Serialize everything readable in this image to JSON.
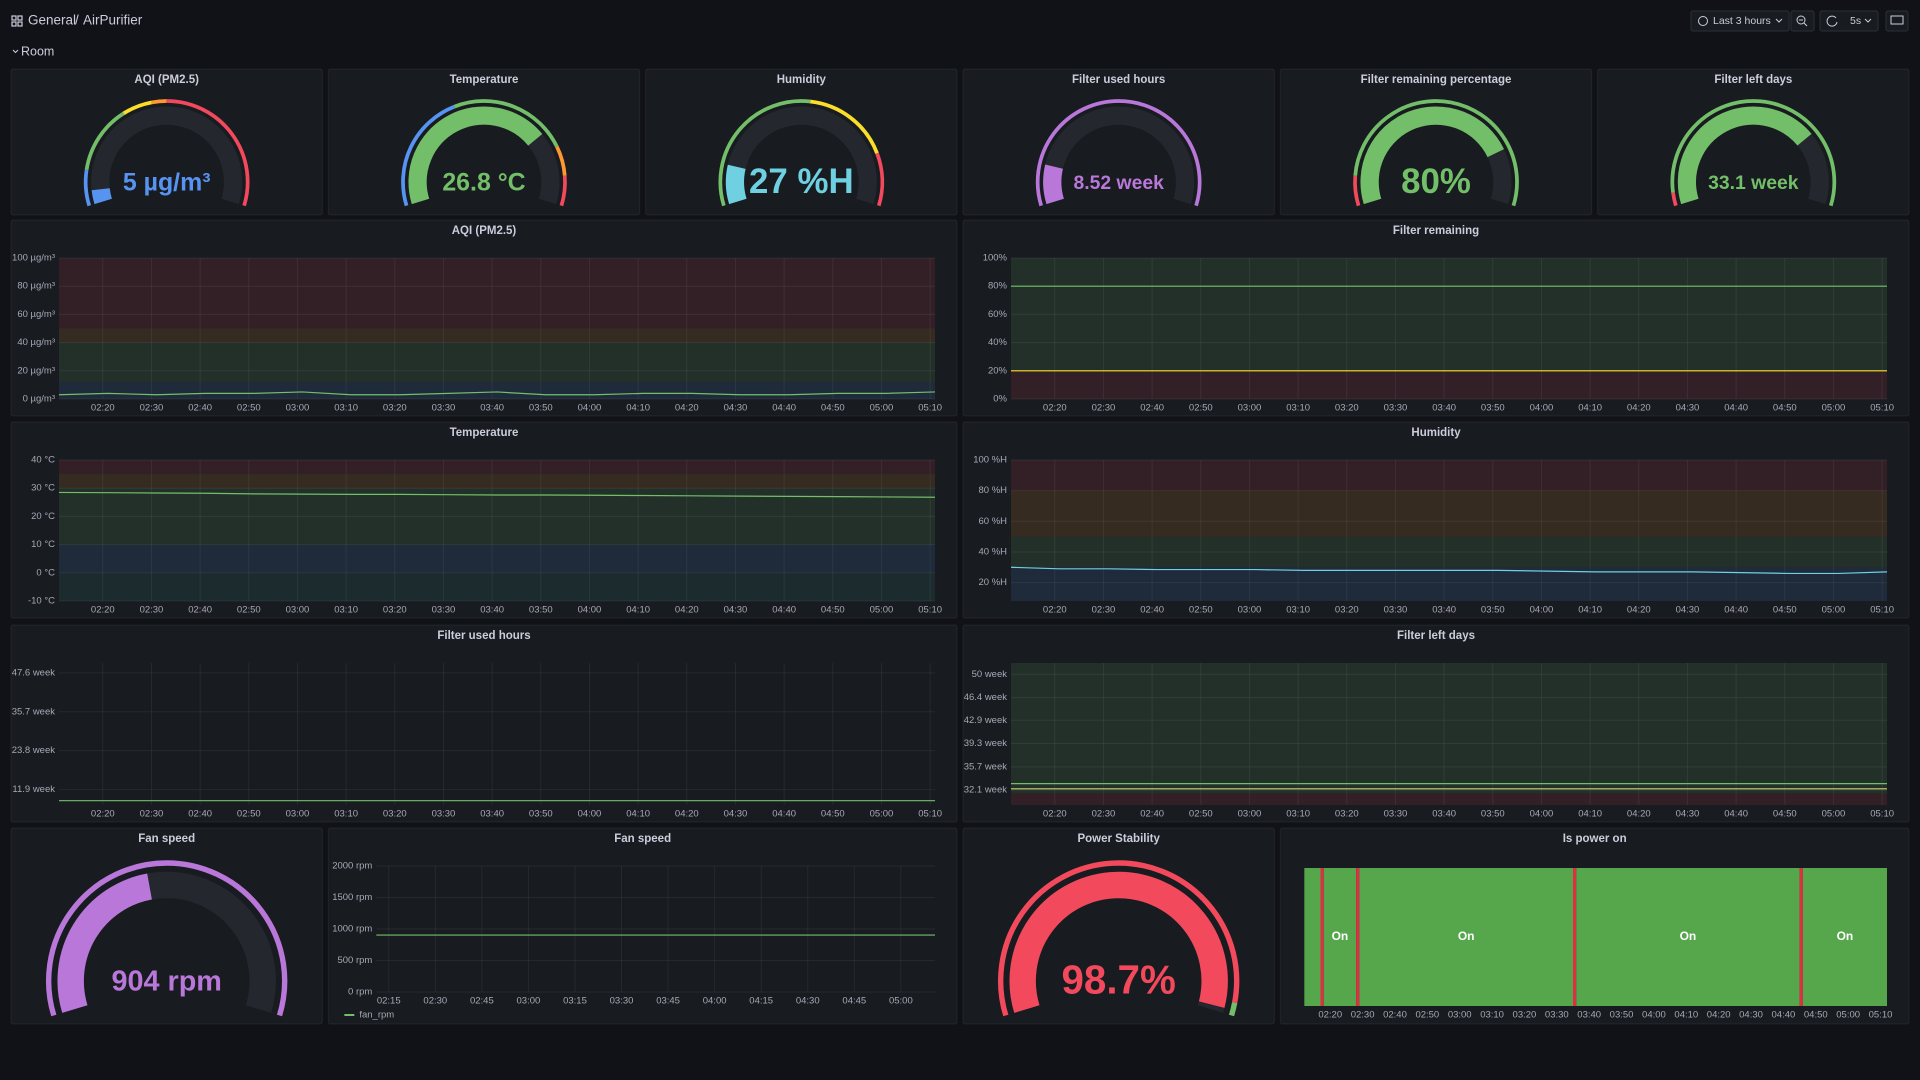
{
  "header": {
    "breadcrumb": [
      "General",
      "AirPurifier"
    ],
    "separator": "/",
    "time_range": "Last 3 hours",
    "refresh": "5s"
  },
  "row": {
    "title": "Room"
  },
  "chart_data": [
    {
      "type": "gauge",
      "title": "AQI (PM2.5)",
      "values": [
        5
      ],
      "value_labels": [
        "5 µg/m³"
      ],
      "ylim": [
        0,
        100
      ],
      "color": "#5794f2",
      "base_color": "#5794f2",
      "thresholds": [
        {
          "value": 12,
          "color": "#73bf69"
        },
        {
          "value": 35,
          "color": "#fade2a"
        },
        {
          "value": 45,
          "color": "#ff9830"
        },
        {
          "value": 50,
          "color": "#f2495c"
        }
      ]
    },
    {
      "type": "gauge",
      "title": "Temperature",
      "values": [
        26.8
      ],
      "value_labels": [
        "26.8 °C"
      ],
      "ylim": [
        -10,
        40
      ],
      "color": "#73bf69",
      "base_color": "#5794f2",
      "thresholds": [
        {
          "value": 10,
          "color": "#73bf69"
        },
        {
          "value": 30,
          "color": "#ff9830"
        },
        {
          "value": 35,
          "color": "#f2495c"
        }
      ]
    },
    {
      "type": "gauge",
      "title": "Humidity",
      "values": [
        27
      ],
      "value_labels": [
        "27 %H"
      ],
      "ylim": [
        15,
        100
      ],
      "color": "#6ed0e0",
      "base_color": "#73bf69",
      "thresholds": [
        {
          "value": 60,
          "color": "#fade2a"
        },
        {
          "value": 85,
          "color": "#f2495c"
        }
      ]
    },
    {
      "type": "gauge",
      "title": "Filter used hours",
      "values": [
        8.52
      ],
      "value_labels": [
        "8.52 week"
      ],
      "ylim": [
        0,
        60
      ],
      "color": "#b877d9",
      "base_color": "#b877d9"
    },
    {
      "type": "gauge",
      "title": "Filter remaining percentage",
      "values": [
        80
      ],
      "value_labels": [
        "80%"
      ],
      "ylim": [
        0,
        100
      ],
      "color": "#73bf69",
      "base_color": "#f2495c",
      "thresholds": [
        {
          "value": 10,
          "color": "#73bf69"
        }
      ]
    },
    {
      "type": "gauge",
      "title": "Filter left days",
      "values": [
        33.1
      ],
      "value_labels": [
        "33.1 week"
      ],
      "ylim": [
        0,
        45
      ],
      "color": "#73bf69",
      "base_color": "#f2495c",
      "thresholds": [
        {
          "value": 2,
          "color": "#73bf69"
        }
      ]
    },
    {
      "type": "line",
      "title": "AQI (PM2.5)",
      "x": [
        "02:11",
        "02:21",
        "02:31",
        "02:41",
        "02:51",
        "03:01",
        "03:11",
        "03:21",
        "03:31",
        "03:41",
        "03:51",
        "04:01",
        "04:11",
        "04:21",
        "04:31",
        "04:41",
        "04:51",
        "05:01",
        "05:11"
      ],
      "xlim": [
        "02:11",
        "05:11"
      ],
      "xticks": [
        "02:20",
        "02:30",
        "02:40",
        "02:50",
        "03:00",
        "03:10",
        "03:20",
        "03:30",
        "03:40",
        "03:50",
        "04:00",
        "04:10",
        "04:20",
        "04:30",
        "04:40",
        "04:50",
        "05:00",
        "05:10"
      ],
      "ylim": [
        0,
        100
      ],
      "yticks": [
        {
          "value": 0,
          "label": "0 µg/m³"
        },
        {
          "value": 20,
          "label": "20 µg/m³"
        },
        {
          "value": 40,
          "label": "40 µg/m³"
        },
        {
          "value": 60,
          "label": "60 µg/m³"
        },
        {
          "value": 80,
          "label": "80 µg/m³"
        },
        {
          "value": 100,
          "label": "100 µg/m³"
        }
      ],
      "grid": true,
      "bands": [
        {
          "from": 0,
          "to": 12,
          "color": "#5794f2"
        },
        {
          "from": 12,
          "to": 40,
          "color": "#73bf69"
        },
        {
          "from": 40,
          "to": 50,
          "color": "#ff9830"
        },
        {
          "from": 50,
          "to": 100,
          "color": "#f2495c"
        }
      ],
      "series": [
        {
          "color": "#73bf69",
          "values": [
            3,
            4,
            3,
            4,
            4,
            5,
            3,
            3,
            4,
            5,
            3,
            3,
            4,
            4,
            3,
            3,
            4,
            4,
            5
          ]
        }
      ]
    },
    {
      "type": "line",
      "title": "Filter remaining",
      "x": [
        "02:11",
        "02:21",
        "02:31",
        "02:41",
        "02:51",
        "03:01",
        "03:11",
        "03:21",
        "03:31",
        "03:41",
        "03:51",
        "04:01",
        "04:11",
        "04:21",
        "04:31",
        "04:41",
        "04:51",
        "05:01",
        "05:11"
      ],
      "xlim": [
        "02:11",
        "05:11"
      ],
      "xticks": [
        "02:20",
        "02:30",
        "02:40",
        "02:50",
        "03:00",
        "03:10",
        "03:20",
        "03:30",
        "03:40",
        "03:50",
        "04:00",
        "04:10",
        "04:20",
        "04:30",
        "04:40",
        "04:50",
        "05:00",
        "05:10"
      ],
      "ylim": [
        0,
        100
      ],
      "yticks": [
        {
          "value": 0,
          "label": "0%"
        },
        {
          "value": 20,
          "label": "20%"
        },
        {
          "value": 40,
          "label": "40%"
        },
        {
          "value": 60,
          "label": "60%"
        },
        {
          "value": 80,
          "label": "80%"
        },
        {
          "value": 100,
          "label": "100%"
        }
      ],
      "grid": true,
      "bands": [
        {
          "from": 0,
          "to": 20,
          "color": "#f2495c"
        },
        {
          "from": 20,
          "to": 100,
          "color": "#73bf69"
        }
      ],
      "threshold_lines": [
        {
          "value": 20,
          "color": "#fade2a"
        }
      ],
      "series": [
        {
          "color": "#73bf69",
          "values": [
            80,
            80,
            80,
            80,
            80,
            80,
            80,
            80,
            80,
            80,
            80,
            80,
            80,
            80,
            80,
            80,
            80,
            80,
            80
          ]
        }
      ]
    },
    {
      "type": "line",
      "title": "Temperature",
      "x": [
        "02:11",
        "02:21",
        "02:31",
        "02:41",
        "02:51",
        "03:01",
        "03:11",
        "03:21",
        "03:31",
        "03:41",
        "03:51",
        "04:01",
        "04:11",
        "04:21",
        "04:31",
        "04:41",
        "04:51",
        "05:01",
        "05:11"
      ],
      "xlim": [
        "02:11",
        "05:11"
      ],
      "xticks": [
        "02:20",
        "02:30",
        "02:40",
        "02:50",
        "03:00",
        "03:10",
        "03:20",
        "03:30",
        "03:40",
        "03:50",
        "04:00",
        "04:10",
        "04:20",
        "04:30",
        "04:40",
        "04:50",
        "05:00",
        "05:10"
      ],
      "ylim": [
        -10,
        40
      ],
      "yticks": [
        {
          "value": -10,
          "label": "-10 °C"
        },
        {
          "value": 0,
          "label": "0 °C"
        },
        {
          "value": 10,
          "label": "10 °C"
        },
        {
          "value": 20,
          "label": "20 °C"
        },
        {
          "value": 30,
          "label": "30 °C"
        },
        {
          "value": 40,
          "label": "40 °C"
        }
      ],
      "grid": true,
      "bands": [
        {
          "from": -10,
          "to": 0,
          "color": "#3ba594"
        },
        {
          "from": 0,
          "to": 10,
          "color": "#5794f2"
        },
        {
          "from": 10,
          "to": 30,
          "color": "#73bf69"
        },
        {
          "from": 30,
          "to": 35,
          "color": "#ff9830"
        },
        {
          "from": 35,
          "to": 40,
          "color": "#f2495c"
        }
      ],
      "series": [
        {
          "color": "#73bf69",
          "values": [
            28.5,
            28.4,
            28.3,
            28.2,
            28.0,
            27.9,
            27.8,
            27.8,
            27.7,
            27.6,
            27.6,
            27.5,
            27.4,
            27.3,
            27.2,
            27.1,
            27.0,
            26.9,
            26.8
          ]
        }
      ]
    },
    {
      "type": "line",
      "title": "Humidity",
      "x": [
        "02:11",
        "02:21",
        "02:31",
        "02:41",
        "02:51",
        "03:01",
        "03:11",
        "03:21",
        "03:31",
        "03:41",
        "03:51",
        "04:01",
        "04:11",
        "04:21",
        "04:31",
        "04:41",
        "04:51",
        "05:01",
        "05:11"
      ],
      "xlim": [
        "02:11",
        "05:11"
      ],
      "xticks": [
        "02:20",
        "02:30",
        "02:40",
        "02:50",
        "03:00",
        "03:10",
        "03:20",
        "03:30",
        "03:40",
        "03:50",
        "04:00",
        "04:10",
        "04:20",
        "04:30",
        "04:40",
        "04:50",
        "05:00",
        "05:10"
      ],
      "ylim": [
        8,
        100
      ],
      "yticks": [
        {
          "value": 20,
          "label": "20 %H"
        },
        {
          "value": 40,
          "label": "40 %H"
        },
        {
          "value": 60,
          "label": "60 %H"
        },
        {
          "value": 80,
          "label": "80 %H"
        },
        {
          "value": 100,
          "label": "100 %H"
        }
      ],
      "grid": true,
      "bands": [
        {
          "from": 8,
          "to": 30,
          "color": "#5794f2"
        },
        {
          "from": 30,
          "to": 50,
          "color": "#73bf69"
        },
        {
          "from": 50,
          "to": 80,
          "color": "#ff9830"
        },
        {
          "from": 80,
          "to": 100,
          "color": "#f2495c"
        }
      ],
      "series": [
        {
          "color": "#6ed0e0",
          "values": [
            30,
            29,
            29,
            28.5,
            28.5,
            28.5,
            28,
            28,
            28,
            28,
            28,
            27.5,
            27,
            27,
            27,
            26.5,
            26,
            26,
            27
          ]
        }
      ]
    },
    {
      "type": "line",
      "title": "Filter used hours",
      "x": [
        "02:11",
        "02:21",
        "02:31",
        "02:41",
        "02:51",
        "03:01",
        "03:11",
        "03:21",
        "03:31",
        "03:41",
        "03:51",
        "04:01",
        "04:11",
        "04:21",
        "04:31",
        "04:41",
        "04:51",
        "05:01",
        "05:11"
      ],
      "xlim": [
        "02:11",
        "05:11"
      ],
      "xticks": [
        "02:20",
        "02:30",
        "02:40",
        "02:50",
        "03:00",
        "03:10",
        "03:20",
        "03:30",
        "03:40",
        "03:50",
        "04:00",
        "04:10",
        "04:20",
        "04:30",
        "04:40",
        "04:50",
        "05:00",
        "05:10"
      ],
      "ylim": [
        7.2,
        50.6
      ],
      "yticks": [
        {
          "value": 11.9,
          "label": "11.9 week"
        },
        {
          "value": 23.8,
          "label": "23.8 week"
        },
        {
          "value": 35.7,
          "label": "35.7 week"
        },
        {
          "value": 47.6,
          "label": "47.6 week"
        }
      ],
      "grid": true,
      "series": [
        {
          "color": "#73bf69",
          "values": [
            8.52,
            8.52,
            8.52,
            8.52,
            8.52,
            8.52,
            8.52,
            8.52,
            8.52,
            8.52,
            8.52,
            8.52,
            8.52,
            8.52,
            8.52,
            8.52,
            8.52,
            8.52,
            8.52
          ]
        }
      ]
    },
    {
      "type": "line",
      "title": "Filter left days",
      "x": [
        "02:11",
        "02:21",
        "02:31",
        "02:41",
        "02:51",
        "03:01",
        "03:11",
        "03:21",
        "03:31",
        "03:41",
        "03:51",
        "04:01",
        "04:11",
        "04:21",
        "04:31",
        "04:41",
        "04:51",
        "05:01",
        "05:11"
      ],
      "xlim": [
        "02:11",
        "05:11"
      ],
      "xticks": [
        "02:20",
        "02:30",
        "02:40",
        "02:50",
        "03:00",
        "03:10",
        "03:20",
        "03:30",
        "03:40",
        "03:50",
        "04:00",
        "04:10",
        "04:20",
        "04:30",
        "04:40",
        "04:50",
        "05:00",
        "05:10"
      ],
      "ylim": [
        29.8,
        51.75
      ],
      "yticks": [
        {
          "value": 32.1,
          "label": "32.1 week"
        },
        {
          "value": 35.7,
          "label": "35.7 week"
        },
        {
          "value": 39.3,
          "label": "39.3 week"
        },
        {
          "value": 42.9,
          "label": "42.9 week"
        },
        {
          "value": 46.4,
          "label": "46.4 week"
        },
        {
          "value": 50,
          "label": "50 week"
        }
      ],
      "grid": true,
      "bands": [
        {
          "from": 29.8,
          "to": 31.6,
          "color": "#f2495c"
        },
        {
          "from": 31.6,
          "to": 51.75,
          "color": "#73bf69"
        }
      ],
      "threshold_lines": [
        {
          "value": 32.3,
          "color": "#c8d46a"
        }
      ],
      "series": [
        {
          "color": "#73bf69",
          "values": [
            33.1,
            33.1,
            33.1,
            33.1,
            33.1,
            33.1,
            33.1,
            33.1,
            33.1,
            33.1,
            33.1,
            33.1,
            33.1,
            33.1,
            33.1,
            33.1,
            33.1,
            33.1,
            33.1
          ]
        }
      ]
    },
    {
      "type": "gauge",
      "title": "Fan speed",
      "values": [
        904
      ],
      "value_labels": [
        "904 rpm"
      ],
      "ylim": [
        0,
        2000
      ],
      "color": "#b877d9",
      "base_color": "#b877d9"
    },
    {
      "type": "line",
      "title": "Fan speed",
      "x": [
        "02:11",
        "02:21",
        "02:31",
        "02:41",
        "02:51",
        "03:01",
        "03:11",
        "03:21",
        "03:31",
        "03:41",
        "03:51",
        "04:01",
        "04:11",
        "04:21",
        "04:31",
        "04:41",
        "04:51",
        "05:01",
        "05:11"
      ],
      "xlim": [
        "02:11",
        "05:11"
      ],
      "xticks": [
        "02:15",
        "02:30",
        "02:45",
        "03:00",
        "03:15",
        "03:30",
        "03:45",
        "04:00",
        "04:15",
        "04:30",
        "04:45",
        "05:00"
      ],
      "ylim": [
        0,
        2000
      ],
      "yticks": [
        {
          "value": 0,
          "label": "0 rpm"
        },
        {
          "value": 500,
          "label": "500 rpm"
        },
        {
          "value": 1000,
          "label": "1000 rpm"
        },
        {
          "value": 1500,
          "label": "1500 rpm"
        },
        {
          "value": 2000,
          "label": "2000 rpm"
        }
      ],
      "grid": true,
      "series": [
        {
          "name": "fan_rpm",
          "color": "#73bf69",
          "values": [
            904,
            904,
            904,
            904,
            904,
            904,
            904,
            904,
            904,
            904,
            904,
            904,
            904,
            904,
            904,
            904,
            904,
            904,
            904
          ]
        }
      ]
    },
    {
      "type": "gauge",
      "title": "Power Stability",
      "values": [
        98.7
      ],
      "value_labels": [
        "98.7%"
      ],
      "ylim": [
        0,
        100
      ],
      "color": "#f2495c",
      "base_color": "#f2495c",
      "thresholds": [
        {
          "value": 97,
          "color": "#73bf69"
        }
      ]
    },
    {
      "type": "state-timeline",
      "title": "Is power on",
      "xlim": [
        "02:12",
        "05:12"
      ],
      "xticks": [
        "02:20",
        "02:30",
        "02:40",
        "02:50",
        "03:00",
        "03:10",
        "03:20",
        "03:30",
        "03:40",
        "03:50",
        "04:00",
        "04:10",
        "04:20",
        "04:30",
        "04:40",
        "04:50",
        "05:00",
        "05:10"
      ],
      "segments": [
        {
          "start": "02:12",
          "end": "02:17",
          "label": null,
          "color": "#56a64b"
        },
        {
          "start": "02:17",
          "end": "02:18",
          "label": null,
          "color": "#e02f44"
        },
        {
          "start": "02:18",
          "end": "02:28",
          "label": "On",
          "color": "#56a64b"
        },
        {
          "start": "02:28",
          "end": "02:29",
          "label": null,
          "color": "#e02f44"
        },
        {
          "start": "02:29",
          "end": "03:35",
          "label": "On",
          "color": "#56a64b"
        },
        {
          "start": "03:35",
          "end": "03:36",
          "label": null,
          "color": "#e02f44"
        },
        {
          "start": "03:36",
          "end": "04:45",
          "label": "On",
          "color": "#56a64b"
        },
        {
          "start": "04:45",
          "end": "04:46",
          "label": null,
          "color": "#e02f44"
        },
        {
          "start": "04:46",
          "end": "05:12",
          "label": "On",
          "color": "#56a64b"
        }
      ]
    }
  ]
}
